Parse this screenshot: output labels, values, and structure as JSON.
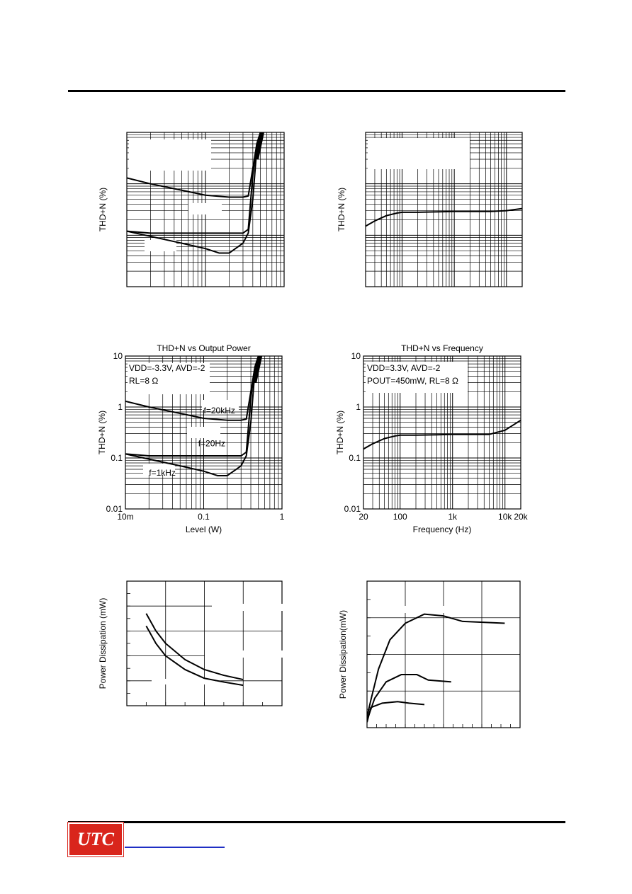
{
  "header": {},
  "footer": {
    "logo_text": "UTC"
  },
  "chart_data": [
    {
      "id": "c1",
      "type": "line",
      "xscale": "log",
      "yscale": "log",
      "xlim": [
        0.01,
        1
      ],
      "ylim": [
        0.01,
        10
      ],
      "show_ticks": false,
      "grid": true,
      "ylabel": "THD+N (%)",
      "series": [
        {
          "width": 2,
          "points": [
            [
              0.01,
              1.3
            ],
            [
              0.02,
              1.0
            ],
            [
              0.05,
              0.75
            ],
            [
              0.1,
              0.6
            ],
            [
              0.2,
              0.55
            ],
            [
              0.3,
              0.55
            ],
            [
              0.35,
              0.58
            ],
            [
              0.4,
              2
            ],
            [
              0.45,
              6
            ],
            [
              0.5,
              10
            ]
          ]
        },
        {
          "width": 2,
          "points": [
            [
              0.01,
              0.12
            ],
            [
              0.02,
              0.11
            ],
            [
              0.05,
              0.11
            ],
            [
              0.1,
              0.11
            ],
            [
              0.2,
              0.11
            ],
            [
              0.3,
              0.11
            ],
            [
              0.35,
              0.13
            ],
            [
              0.4,
              1.5
            ],
            [
              0.45,
              6
            ],
            [
              0.5,
              10
            ]
          ]
        },
        {
          "width": 2,
          "points": [
            [
              0.01,
              0.12
            ],
            [
              0.02,
              0.095
            ],
            [
              0.05,
              0.07
            ],
            [
              0.1,
              0.055
            ],
            [
              0.15,
              0.045
            ],
            [
              0.2,
              0.045
            ],
            [
              0.3,
              0.07
            ],
            [
              0.35,
              0.11
            ],
            [
              0.4,
              0.5
            ],
            [
              0.45,
              5
            ],
            [
              0.5,
              10
            ]
          ]
        }
      ]
    },
    {
      "id": "c2",
      "type": "line",
      "xscale": "log",
      "yscale": "log",
      "xlim": [
        20,
        20000
      ],
      "ylim": [
        0.01,
        10
      ],
      "show_ticks": false,
      "grid": true,
      "ylabel": "THD+N (%)",
      "series": [
        {
          "width": 2,
          "points": [
            [
              20,
              0.15
            ],
            [
              30,
              0.19
            ],
            [
              50,
              0.24
            ],
            [
              80,
              0.27
            ],
            [
              100,
              0.28
            ],
            [
              200,
              0.28
            ],
            [
              500,
              0.285
            ],
            [
              1000,
              0.29
            ],
            [
              2000,
              0.29
            ],
            [
              5000,
              0.29
            ],
            [
              10000,
              0.3
            ],
            [
              20000,
              0.33
            ]
          ]
        }
      ]
    },
    {
      "id": "c3",
      "type": "line",
      "title": "THD+N vs Output Power",
      "xscale": "log",
      "yscale": "log",
      "xlim": [
        0.01,
        1
      ],
      "ylim": [
        0.01,
        10
      ],
      "show_ticks": true,
      "grid": true,
      "xlabel": "Level (W)",
      "ylabel": "THD+N (%)",
      "xticks": [
        [
          0.01,
          "10m"
        ],
        [
          0.1,
          "0.1"
        ],
        [
          1,
          "1"
        ]
      ],
      "yticks": [
        [
          10,
          "10"
        ],
        [
          1,
          "1"
        ],
        [
          0.1,
          "0.1"
        ],
        [
          0.01,
          "0.01"
        ]
      ],
      "legend_lines": [
        "VDD=-3.3V, AVD=-2",
        "RL=8 Ω"
      ],
      "annotations": [
        {
          "text": "f=20kHz",
          "x": 0.1,
          "y": 0.75
        },
        {
          "text": "f=20Hz",
          "x": 0.085,
          "y": 0.17
        },
        {
          "text": "f=1kHz",
          "x": 0.02,
          "y": 0.045
        }
      ],
      "series": [
        {
          "name": "f=20kHz",
          "width": 2,
          "points": [
            [
              0.01,
              1.3
            ],
            [
              0.02,
              1.0
            ],
            [
              0.05,
              0.75
            ],
            [
              0.1,
              0.6
            ],
            [
              0.2,
              0.55
            ],
            [
              0.3,
              0.55
            ],
            [
              0.35,
              0.58
            ],
            [
              0.4,
              2
            ],
            [
              0.45,
              6
            ],
            [
              0.5,
              10
            ]
          ]
        },
        {
          "name": "f=20Hz",
          "width": 2,
          "points": [
            [
              0.01,
              0.12
            ],
            [
              0.02,
              0.11
            ],
            [
              0.05,
              0.11
            ],
            [
              0.1,
              0.11
            ],
            [
              0.2,
              0.11
            ],
            [
              0.3,
              0.11
            ],
            [
              0.35,
              0.13
            ],
            [
              0.4,
              1.5
            ],
            [
              0.45,
              6
            ],
            [
              0.5,
              10
            ]
          ]
        },
        {
          "name": "f=1kHz",
          "width": 2,
          "points": [
            [
              0.01,
              0.12
            ],
            [
              0.02,
              0.095
            ],
            [
              0.05,
              0.07
            ],
            [
              0.1,
              0.055
            ],
            [
              0.15,
              0.045
            ],
            [
              0.2,
              0.045
            ],
            [
              0.3,
              0.07
            ],
            [
              0.35,
              0.11
            ],
            [
              0.4,
              0.5
            ],
            [
              0.45,
              5
            ],
            [
              0.5,
              10
            ]
          ]
        }
      ]
    },
    {
      "id": "c4",
      "type": "line",
      "title": "THD+N vs Frequency",
      "xscale": "log",
      "yscale": "log",
      "xlim": [
        20,
        20000
      ],
      "ylim": [
        0.01,
        10
      ],
      "show_ticks": true,
      "grid": true,
      "xlabel": "Frequency  (Hz)",
      "ylabel": "THD+N (%)",
      "xticks": [
        [
          20,
          "20"
        ],
        [
          100,
          "100"
        ],
        [
          1000,
          "1k"
        ],
        [
          10000,
          "10k"
        ],
        [
          20000,
          "20k"
        ]
      ],
      "yticks": [
        [
          10,
          "10"
        ],
        [
          1,
          "1"
        ],
        [
          0.1,
          "0.1"
        ],
        [
          0.01,
          "0.01"
        ]
      ],
      "legend_lines": [
        "VDD=3.3V, AVD=-2",
        "POUT=450mW, RL=8 Ω"
      ],
      "series": [
        {
          "width": 2,
          "points": [
            [
              20,
              0.15
            ],
            [
              30,
              0.19
            ],
            [
              50,
              0.24
            ],
            [
              80,
              0.27
            ],
            [
              100,
              0.28
            ],
            [
              200,
              0.28
            ],
            [
              500,
              0.285
            ],
            [
              1000,
              0.29
            ],
            [
              2000,
              0.29
            ],
            [
              5000,
              0.29
            ],
            [
              10000,
              0.35
            ],
            [
              20000,
              0.55
            ]
          ]
        }
      ]
    },
    {
      "id": "c5",
      "type": "line",
      "xscale": "linear",
      "yscale": "linear",
      "xlim": [
        0,
        8
      ],
      "ylim": [
        0,
        5
      ],
      "show_ticks": false,
      "grid": true,
      "ylabel": "Power Dissipation (mW)",
      "series": [
        {
          "width": 2,
          "points": [
            [
              1,
              3.7
            ],
            [
              1.5,
              3.0
            ],
            [
              2,
              2.5
            ],
            [
              3,
              1.85
            ],
            [
              4,
              1.45
            ],
            [
              5,
              1.22
            ],
            [
              6,
              1.05
            ]
          ]
        },
        {
          "width": 2,
          "points": [
            [
              1,
              3.2
            ],
            [
              1.5,
              2.5
            ],
            [
              2,
              2.0
            ],
            [
              3,
              1.45
            ],
            [
              4,
              1.1
            ],
            [
              5,
              0.95
            ],
            [
              6,
              0.82
            ]
          ]
        }
      ]
    },
    {
      "id": "c6",
      "type": "line",
      "xscale": "linear",
      "yscale": "linear",
      "xlim": [
        0,
        4
      ],
      "ylim": [
        0,
        4
      ],
      "show_ticks": false,
      "grid": true,
      "ylabel": "Power Dissipation(mW)",
      "series": [
        {
          "width": 2,
          "points": [
            [
              0,
              0.3
            ],
            [
              0.1,
              0.75
            ],
            [
              0.3,
              1.6
            ],
            [
              0.6,
              2.4
            ],
            [
              1.0,
              2.85
            ],
            [
              1.5,
              3.1
            ],
            [
              2.0,
              3.05
            ],
            [
              2.5,
              2.9
            ],
            [
              3.6,
              2.85
            ]
          ]
        },
        {
          "width": 2,
          "points": [
            [
              0,
              0.2
            ],
            [
              0.2,
              0.8
            ],
            [
              0.5,
              1.25
            ],
            [
              0.9,
              1.45
            ],
            [
              1.3,
              1.45
            ],
            [
              1.6,
              1.3
            ],
            [
              2.2,
              1.25
            ]
          ]
        },
        {
          "width": 2,
          "points": [
            [
              0,
              0.15
            ],
            [
              0.1,
              0.55
            ],
            [
              0.4,
              0.67
            ],
            [
              0.8,
              0.71
            ],
            [
              1.1,
              0.67
            ],
            [
              1.5,
              0.63
            ]
          ]
        }
      ]
    }
  ]
}
